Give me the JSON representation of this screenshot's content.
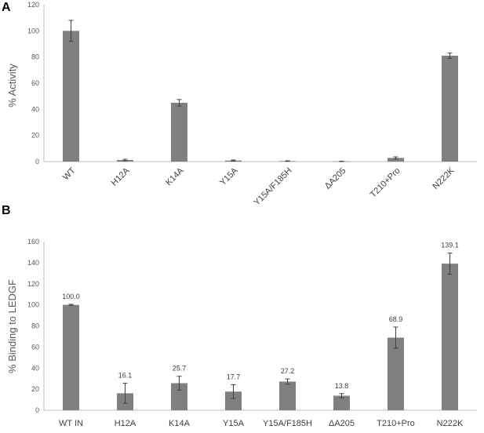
{
  "chart_data": [
    {
      "type": "bar",
      "panel_label": "A",
      "ylabel": "% Activity",
      "ylim": [
        0,
        120
      ],
      "yticks": [
        0,
        20,
        40,
        60,
        80,
        100,
        120
      ],
      "categories": [
        "WT",
        "H12A",
        "K14A",
        "Y15A",
        "Y15A/F185H",
        "ΔA205",
        "T210+Pro",
        "N222K"
      ],
      "values": [
        100,
        1.2,
        45,
        0.8,
        0.4,
        0.2,
        2.8,
        81
      ],
      "errors": [
        8,
        0.6,
        2.5,
        0.4,
        0.2,
        0.1,
        0.8,
        2
      ],
      "bar_color": "#808080",
      "grid": false,
      "category_label_rotation": -45
    },
    {
      "type": "bar",
      "panel_label": "B",
      "ylabel": "% Binding to LEDGF",
      "ylim": [
        0,
        160
      ],
      "yticks": [
        0,
        20,
        40,
        60,
        80,
        100,
        120,
        140,
        160
      ],
      "categories": [
        "WT IN",
        "H12A",
        "K14A",
        "Y15A",
        "Y15A/F185H",
        "ΔA205",
        "T210+Pro",
        "N222K"
      ],
      "values": [
        100.0,
        16.1,
        25.7,
        17.7,
        27.2,
        13.8,
        68.9,
        139.1
      ],
      "data_labels": [
        "100.0",
        "16.1",
        "25.7",
        "17.7",
        "27.2",
        "13.8",
        "68.9",
        "139.1"
      ],
      "errors": [
        0.5,
        9.5,
        6.5,
        6.5,
        2.5,
        2,
        10,
        10
      ],
      "bar_color": "#808080",
      "grid": false
    }
  ]
}
